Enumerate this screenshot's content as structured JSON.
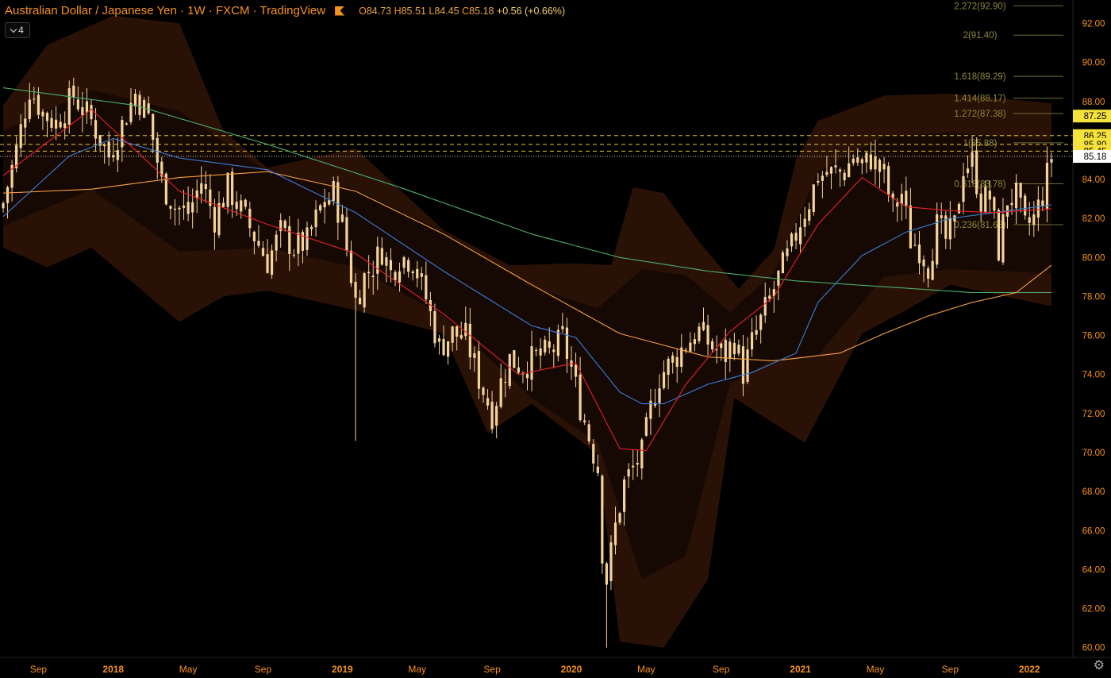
{
  "header": {
    "title": "Australian Dollar / Japanese Yen · 1W · FXCM · TradingView",
    "open_label": "O",
    "open": "84.73",
    "high_label": "H",
    "high": "85.51",
    "low_label": "L",
    "low": "84.45",
    "close_label": "C",
    "close": "85.18",
    "change": "+0.56 (+0.66%)"
  },
  "indicator_toggle": {
    "count": "4"
  },
  "colors": {
    "background": "#000000",
    "candle": "#f5d49a",
    "axis_text": "#f7931a",
    "ema_red": "#e8202a",
    "ema_blue": "#3b7ddd",
    "ema_orange": "#f5a040",
    "ema_green": "#4caf6a",
    "band_fill": "#3a1a0a",
    "fib_text": "#8a8a3a",
    "price_tag": "#f5e23a"
  },
  "chart_data": {
    "type": "candlestick",
    "symbol": "AUDJPY",
    "timeframe": "1W",
    "ylim": [
      59.5,
      93.2
    ],
    "y_ticks": [
      "92.00",
      "90.00",
      "88.00",
      "86.00",
      "84.00",
      "82.00",
      "80.00",
      "78.00",
      "76.00",
      "74.00",
      "72.00",
      "70.00",
      "68.00",
      "66.00",
      "64.00",
      "62.00",
      "60.00"
    ],
    "x_ticks": [
      {
        "label": "Sep",
        "week": 8
      },
      {
        "label": "2018",
        "week": 25
      },
      {
        "label": "May",
        "week": 42
      },
      {
        "label": "Sep",
        "week": 59
      },
      {
        "label": "2019",
        "week": 77
      },
      {
        "label": "May",
        "week": 94
      },
      {
        "label": "Sep",
        "week": 111
      },
      {
        "label": "2020",
        "week": 129
      },
      {
        "label": "May",
        "week": 146
      },
      {
        "label": "Sep",
        "week": 163
      },
      {
        "label": "2021",
        "week": 181
      },
      {
        "label": "May",
        "week": 198
      },
      {
        "label": "Sep",
        "week": 215
      },
      {
        "label": "2022",
        "week": 233
      }
    ],
    "close_anchors": [
      [
        0,
        82.8
      ],
      [
        3,
        85.5
      ],
      [
        6,
        88.7
      ],
      [
        9,
        87.4
      ],
      [
        12,
        86.9
      ],
      [
        16,
        88.3
      ],
      [
        20,
        87.0
      ],
      [
        24,
        85.2
      ],
      [
        27,
        86.8
      ],
      [
        30,
        88.4
      ],
      [
        33,
        87.2
      ],
      [
        36,
        83.8
      ],
      [
        39,
        82.6
      ],
      [
        42,
        82.3
      ],
      [
        45,
        83.9
      ],
      [
        48,
        82.0
      ],
      [
        51,
        83.6
      ],
      [
        54,
        82.4
      ],
      [
        57,
        81.1
      ],
      [
        60,
        79.8
      ],
      [
        63,
        81.3
      ],
      [
        66,
        80.5
      ],
      [
        69,
        80.8
      ],
      [
        72,
        82.5
      ],
      [
        75,
        83.3
      ],
      [
        77,
        81.7
      ],
      [
        80,
        77.8
      ],
      [
        82,
        79.0
      ],
      [
        84,
        79.6
      ],
      [
        86,
        80.4
      ],
      [
        88,
        79.2
      ],
      [
        90,
        80.0
      ],
      [
        93,
        79.9
      ],
      [
        96,
        77.9
      ],
      [
        99,
        75.4
      ],
      [
        102,
        76.1
      ],
      [
        105,
        75.9
      ],
      [
        108,
        73.8
      ],
      [
        111,
        72.0
      ],
      [
        113,
        73.6
      ],
      [
        115,
        74.8
      ],
      [
        118,
        74.4
      ],
      [
        121,
        74.9
      ],
      [
        124,
        75.1
      ],
      [
        127,
        75.8
      ],
      [
        129,
        74.3
      ],
      [
        131,
        72.4
      ],
      [
        133,
        70.8
      ],
      [
        135,
        69.2
      ],
      [
        136,
        65.0
      ],
      [
        137,
        63.5
      ],
      [
        139,
        66.2
      ],
      [
        141,
        68.4
      ],
      [
        143,
        69.2
      ],
      [
        145,
        69.9
      ],
      [
        147,
        72.2
      ],
      [
        149,
        73.9
      ],
      [
        152,
        74.7
      ],
      [
        155,
        75.6
      ],
      [
        158,
        76.2
      ],
      [
        161,
        75.4
      ],
      [
        164,
        75.0
      ],
      [
        166,
        75.8
      ],
      [
        168,
        74.1
      ],
      [
        170,
        75.6
      ],
      [
        173,
        77.3
      ],
      [
        175,
        78.4
      ],
      [
        177,
        79.5
      ],
      [
        179,
        80.5
      ],
      [
        181,
        81.9
      ],
      [
        183,
        82.9
      ],
      [
        185,
        84.2
      ],
      [
        188,
        84.3
      ],
      [
        191,
        84.4
      ],
      [
        193,
        85.2
      ],
      [
        195,
        84.6
      ],
      [
        197,
        85.1
      ],
      [
        200,
        84.2
      ],
      [
        202,
        82.4
      ],
      [
        204,
        83.3
      ],
      [
        206,
        80.9
      ],
      [
        208,
        80.5
      ],
      [
        210,
        79.6
      ],
      [
        212,
        81.6
      ],
      [
        214,
        80.9
      ],
      [
        216,
        81.6
      ],
      [
        218,
        84.7
      ],
      [
        220,
        84.9
      ],
      [
        222,
        82.9
      ],
      [
        224,
        83.1
      ],
      [
        226,
        80.4
      ],
      [
        228,
        83.0
      ],
      [
        230,
        83.1
      ],
      [
        232,
        81.5
      ],
      [
        234,
        82.0
      ],
      [
        236,
        83.2
      ],
      [
        238,
        85.2
      ]
    ],
    "special_wicks": [
      [
        80,
        70.6
      ],
      [
        137,
        60.0
      ]
    ],
    "ema_red": [
      [
        0,
        84.2
      ],
      [
        20,
        87.6
      ],
      [
        40,
        83.4
      ],
      [
        60,
        81.7
      ],
      [
        80,
        80.2
      ],
      [
        100,
        77.1
      ],
      [
        117,
        74.0
      ],
      [
        130,
        74.6
      ],
      [
        135,
        72.4
      ],
      [
        140,
        70.2
      ],
      [
        146,
        70.1
      ],
      [
        155,
        73.5
      ],
      [
        165,
        76.2
      ],
      [
        175,
        78.0
      ],
      [
        185,
        81.7
      ],
      [
        195,
        84.1
      ],
      [
        205,
        82.6
      ],
      [
        215,
        82.4
      ],
      [
        225,
        82.3
      ],
      [
        238,
        82.5
      ]
    ],
    "ema_blue": [
      [
        0,
        82.1
      ],
      [
        15,
        85.2
      ],
      [
        25,
        86.1
      ],
      [
        40,
        85.1
      ],
      [
        60,
        84.5
      ],
      [
        80,
        82.3
      ],
      [
        100,
        79.3
      ],
      [
        120,
        76.5
      ],
      [
        130,
        75.9
      ],
      [
        140,
        73.1
      ],
      [
        145,
        72.5
      ],
      [
        150,
        72.5
      ],
      [
        160,
        73.5
      ],
      [
        170,
        74.1
      ],
      [
        180,
        75.1
      ],
      [
        185,
        77.7
      ],
      [
        195,
        80.1
      ],
      [
        205,
        81.3
      ],
      [
        215,
        82.0
      ],
      [
        225,
        82.3
      ],
      [
        238,
        82.7
      ]
    ],
    "ema_orange": [
      [
        0,
        83.3
      ],
      [
        20,
        83.5
      ],
      [
        40,
        84.1
      ],
      [
        60,
        84.4
      ],
      [
        80,
        83.4
      ],
      [
        100,
        81.2
      ],
      [
        120,
        78.6
      ],
      [
        140,
        76.1
      ],
      [
        160,
        74.9
      ],
      [
        175,
        74.7
      ],
      [
        190,
        75.1
      ],
      [
        200,
        76.1
      ],
      [
        210,
        77.0
      ],
      [
        220,
        77.7
      ],
      [
        230,
        78.2
      ],
      [
        238,
        79.6
      ]
    ],
    "ema_green": [
      [
        0,
        88.7
      ],
      [
        30,
        87.8
      ],
      [
        60,
        85.8
      ],
      [
        90,
        83.6
      ],
      [
        120,
        81.2
      ],
      [
        140,
        80.0
      ],
      [
        160,
        79.3
      ],
      [
        180,
        78.8
      ],
      [
        200,
        78.5
      ],
      [
        220,
        78.2
      ],
      [
        238,
        78.2
      ]
    ],
    "band_outer_upper": [
      [
        0,
        87.8
      ],
      [
        10,
        90.9
      ],
      [
        25,
        92.4
      ],
      [
        40,
        92.0
      ],
      [
        50,
        86.5
      ],
      [
        60,
        84.6
      ],
      [
        80,
        85.6
      ],
      [
        100,
        81.4
      ],
      [
        115,
        79.6
      ],
      [
        130,
        79.7
      ],
      [
        138,
        79.6
      ],
      [
        143,
        83.6
      ],
      [
        150,
        83.3
      ],
      [
        158,
        80.8
      ],
      [
        167,
        78.4
      ],
      [
        175,
        80.4
      ],
      [
        180,
        85.0
      ],
      [
        185,
        87.0
      ],
      [
        200,
        88.3
      ],
      [
        215,
        88.4
      ],
      [
        238,
        87.9
      ]
    ],
    "band_outer_lower": [
      [
        0,
        80.5
      ],
      [
        10,
        79.5
      ],
      [
        20,
        80.5
      ],
      [
        40,
        76.7
      ],
      [
        50,
        78.0
      ],
      [
        60,
        78.3
      ],
      [
        80,
        77.3
      ],
      [
        100,
        76.1
      ],
      [
        110,
        71.0
      ],
      [
        120,
        72.5
      ],
      [
        135,
        69.9
      ],
      [
        140,
        60.3
      ],
      [
        150,
        60.0
      ],
      [
        160,
        63.5
      ],
      [
        166,
        72.8
      ],
      [
        175,
        71.5
      ],
      [
        182,
        70.5
      ],
      [
        195,
        76.1
      ],
      [
        205,
        77.3
      ],
      [
        215,
        78.6
      ],
      [
        238,
        77.5
      ]
    ],
    "band_inner_upper": [
      [
        0,
        86.5
      ],
      [
        20,
        88.6
      ],
      [
        40,
        87.5
      ],
      [
        60,
        84.4
      ],
      [
        80,
        83.5
      ],
      [
        100,
        81.3
      ],
      [
        120,
        78.5
      ],
      [
        135,
        77.4
      ],
      [
        145,
        79.4
      ],
      [
        155,
        79.1
      ],
      [
        165,
        77.2
      ],
      [
        175,
        79.2
      ],
      [
        185,
        84.4
      ],
      [
        200,
        86.2
      ],
      [
        215,
        86.4
      ],
      [
        238,
        86.0
      ]
    ],
    "band_inner_lower": [
      [
        0,
        81.6
      ],
      [
        20,
        83.5
      ],
      [
        40,
        80.3
      ],
      [
        60,
        80.5
      ],
      [
        80,
        79.5
      ],
      [
        100,
        77.0
      ],
      [
        120,
        72.8
      ],
      [
        135,
        70.5
      ],
      [
        145,
        63.5
      ],
      [
        155,
        64.7
      ],
      [
        165,
        73.5
      ],
      [
        175,
        74.8
      ],
      [
        185,
        75.0
      ],
      [
        200,
        79.0
      ],
      [
        215,
        79.4
      ],
      [
        238,
        79.2
      ]
    ],
    "horizontal_levels": [
      {
        "value": 86.25,
        "style": "dashed",
        "color": "#f5e23a"
      },
      {
        "value": 85.8,
        "style": "dashed",
        "color": "#f5e23a"
      },
      {
        "value": 85.45,
        "style": "dashed",
        "color": "#f5e23a"
      },
      {
        "value": 85.18,
        "style": "dotted",
        "color": "#ffffff"
      }
    ],
    "fib_levels": [
      {
        "label": "2.272(92.90)",
        "value": 92.9
      },
      {
        "label": "2(91.40)",
        "value": 91.4
      },
      {
        "label": "1.618(89.29)",
        "value": 89.29
      },
      {
        "label": "1.414(88.17)",
        "value": 88.17
      },
      {
        "label": "1.272(87.38)",
        "value": 87.38
      },
      {
        "label": "1(85.88)",
        "value": 85.88
      },
      {
        "label": "0.618(83.78)",
        "value": 83.78
      },
      {
        "label": "0.236(81.68)",
        "value": 81.68
      }
    ],
    "price_tags": [
      {
        "label": "87.25",
        "value": 87.25,
        "kind": "yellow"
      },
      {
        "label": "86.25",
        "value": 86.25,
        "kind": "yellow"
      },
      {
        "label": "85.80",
        "value": 85.8,
        "kind": "yellow"
      },
      {
        "label": "85.45",
        "value": 85.45,
        "kind": "yellow"
      },
      {
        "label": "85.18",
        "value": 85.18,
        "kind": "white"
      }
    ]
  }
}
